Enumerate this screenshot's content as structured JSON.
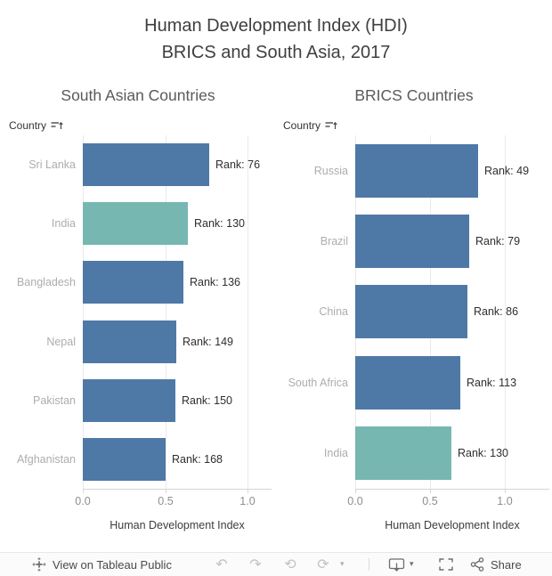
{
  "title": {
    "line1": "Human Development Index (HDI)",
    "line2": "BRICS and South Asia, 2017"
  },
  "colors": {
    "bar_blue": "#4e79a7",
    "bar_teal": "#76b7b2",
    "gridline": "#eaeaea",
    "axis_line": "#d6d6d6",
    "row_label": "#adadad",
    "bar_label": "#2e2e2e"
  },
  "chart_data": [
    {
      "type": "bar",
      "orientation": "horizontal",
      "title": "South Asian Countries",
      "field_label": "Country",
      "xlabel": "Human Development Index",
      "xticks": [
        "0.0",
        "0.5",
        "1.0"
      ],
      "xtick_values": [
        0,
        0.5,
        1
      ],
      "xlim": [
        0,
        1.15
      ],
      "grid": "vertical",
      "categories": [
        "Sri Lanka",
        "India",
        "Bangladesh",
        "Nepal",
        "Pakistan",
        "Afghanistan"
      ],
      "values": [
        0.77,
        0.64,
        0.61,
        0.57,
        0.56,
        0.5
      ],
      "bar_labels": [
        "Rank: 76",
        "Rank: 130",
        "Rank: 136",
        "Rank: 149",
        "Rank: 150",
        "Rank: 168"
      ],
      "bar_colors": [
        "#4e79a7",
        "#76b7b2",
        "#4e79a7",
        "#4e79a7",
        "#4e79a7",
        "#4e79a7"
      ]
    },
    {
      "type": "bar",
      "orientation": "horizontal",
      "title": "BRICS Countries",
      "field_label": "Country",
      "xlabel": "Human Development Index",
      "xticks": [
        "0.0",
        "0.5",
        "1.0"
      ],
      "xtick_values": [
        0,
        0.5,
        1
      ],
      "xlim": [
        0,
        1.3
      ],
      "grid": "vertical",
      "categories": [
        "Russia",
        "Brazil",
        "China",
        "South Africa",
        "India"
      ],
      "values": [
        0.82,
        0.76,
        0.75,
        0.7,
        0.64
      ],
      "bar_labels": [
        "Rank: 49",
        "Rank: 79",
        "Rank: 86",
        "Rank: 113",
        "Rank: 130"
      ],
      "bar_colors": [
        "#4e79a7",
        "#4e79a7",
        "#4e79a7",
        "#4e79a7",
        "#76b7b2"
      ]
    }
  ],
  "toolbar": {
    "view_label": "View on Tableau Public",
    "share_label": "Share",
    "glyphs": {
      "undo": "↶",
      "redo": "↷",
      "revert": "⟲",
      "refresh": "⟳",
      "caret": "▾"
    }
  }
}
